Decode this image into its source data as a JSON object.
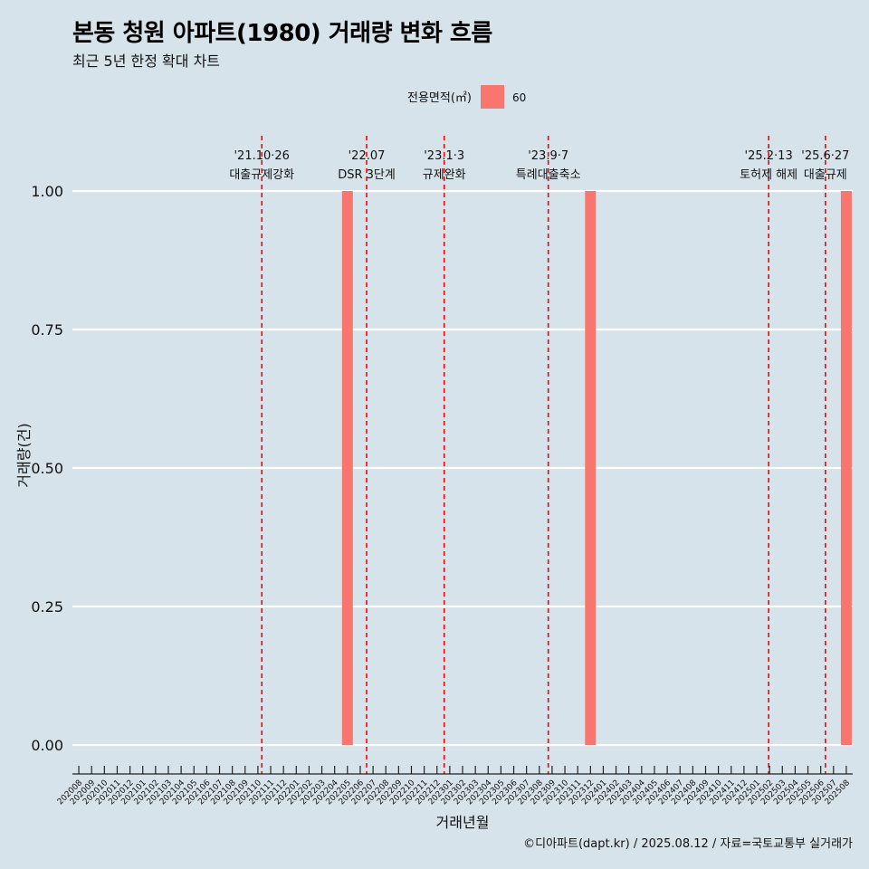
{
  "chart_data": {
    "type": "bar",
    "title": "본동 청원 아파트(1980) 거래량 변화 흐름",
    "subtitle": "최근 5년 한정 확대 차트",
    "xlabel": "거래년월",
    "ylabel": "거래량(건)",
    "ylim": [
      0,
      1
    ],
    "yticks": [
      "0.00",
      "0.25",
      "0.50",
      "0.75",
      "1.00"
    ],
    "grid": true,
    "legend": {
      "title": "전용면적(㎡)",
      "position": "top",
      "entries": [
        {
          "name": "60",
          "color": "#f8766d"
        }
      ]
    },
    "categories": [
      "202008",
      "202009",
      "202010",
      "202011",
      "202012",
      "202101",
      "202102",
      "202103",
      "202104",
      "202105",
      "202106",
      "202107",
      "202108",
      "202109",
      "202110",
      "202111",
      "202112",
      "202201",
      "202202",
      "202203",
      "202204",
      "202205",
      "202206",
      "202207",
      "202208",
      "202209",
      "202210",
      "202211",
      "202212",
      "202301",
      "202302",
      "202303",
      "202304",
      "202305",
      "202306",
      "202307",
      "202308",
      "202309",
      "202310",
      "202311",
      "202312",
      "202401",
      "202402",
      "202403",
      "202404",
      "202405",
      "202406",
      "202407",
      "202408",
      "202409",
      "202410",
      "202411",
      "202412",
      "202501",
      "202502",
      "202503",
      "202504",
      "202505",
      "202506",
      "202507",
      "202508"
    ],
    "series": [
      {
        "name": "60",
        "color": "#f8766d",
        "values": [
          0,
          0,
          0,
          0,
          0,
          0,
          0,
          0,
          0,
          0,
          0,
          0,
          0,
          0,
          0,
          0,
          0,
          0,
          0,
          0,
          0,
          1,
          0,
          0,
          0,
          0,
          0,
          0,
          0,
          0,
          0,
          0,
          0,
          0,
          0,
          0,
          0,
          0,
          0,
          0,
          1,
          0,
          0,
          0,
          0,
          0,
          0,
          0,
          0,
          0,
          0,
          0,
          0,
          0,
          0,
          0,
          0,
          0,
          0,
          0,
          1
        ]
      }
    ],
    "annotations": [
      {
        "x": "2021-10-26",
        "date_label": "'21.10·26",
        "text": "대출규제강화"
      },
      {
        "x": "2022-07-01",
        "date_label": "'22.07",
        "text": "DSR 3단계"
      },
      {
        "x": "2023-01-03",
        "date_label": "'23.1·3",
        "text": "규제완화"
      },
      {
        "x": "2023-09-07",
        "date_label": "'23.9·7",
        "text": "특례대출축소"
      },
      {
        "x": "2025-02-13",
        "date_label": "'25.2·13",
        "text": "토허제 해제"
      },
      {
        "x": "2025-06-27",
        "date_label": "'25.6·27",
        "text": "대출규제"
      }
    ],
    "annotation_color": "#ff0000",
    "caption": "©디아파트(dapt.kr) / 2025.08.12 / 자료=국토교통부 실거래가"
  }
}
